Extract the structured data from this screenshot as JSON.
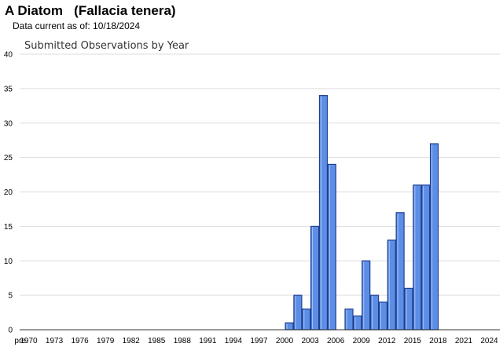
{
  "header": {
    "title": "A Diatom   (Fallacia tenera)",
    "subtitle": "Data current as of: 10/18/2024"
  },
  "colors": {
    "bar_fill": "#5c8ee6",
    "bar_stroke": "#1f3f8f",
    "grid": "#dddddd",
    "axis": "#333333"
  },
  "chart_data": {
    "type": "bar",
    "title": "Submitted Observations by Year",
    "xlabel": "",
    "ylabel": "",
    "ylim": [
      0,
      40
    ],
    "y_ticks": [
      0,
      5,
      10,
      15,
      20,
      25,
      30,
      35,
      40
    ],
    "grid": true,
    "x_tick_labels": [
      "pre",
      "1970",
      "1973",
      "1976",
      "1979",
      "1982",
      "1985",
      "1988",
      "1991",
      "1994",
      "1997",
      "2000",
      "2003",
      "2006",
      "2009",
      "2012",
      "2015",
      "2018",
      "2021",
      "2024"
    ],
    "categories": [
      "pre",
      "1970",
      "1971",
      "1972",
      "1973",
      "1974",
      "1975",
      "1976",
      "1977",
      "1978",
      "1979",
      "1980",
      "1981",
      "1982",
      "1983",
      "1984",
      "1985",
      "1986",
      "1987",
      "1988",
      "1989",
      "1990",
      "1991",
      "1992",
      "1993",
      "1994",
      "1995",
      "1996",
      "1997",
      "1998",
      "1999",
      "2000",
      "2001",
      "2002",
      "2003",
      "2004",
      "2005",
      "2006",
      "2007",
      "2008",
      "2009",
      "2010",
      "2011",
      "2012",
      "2013",
      "2014",
      "2015",
      "2016",
      "2017",
      "2018",
      "2019",
      "2020",
      "2021",
      "2022",
      "2023",
      "2024"
    ],
    "values": [
      0,
      0,
      0,
      0,
      0,
      0,
      0,
      0,
      0,
      0,
      0,
      0,
      0,
      0,
      0,
      0,
      0,
      0,
      0,
      0,
      0,
      0,
      0,
      0,
      0,
      0,
      0,
      0,
      0,
      0,
      0,
      1,
      5,
      3,
      15,
      34,
      24,
      0,
      3,
      2,
      10,
      5,
      4,
      13,
      17,
      6,
      21,
      21,
      27,
      0,
      0,
      0,
      0,
      0,
      0,
      0
    ]
  }
}
